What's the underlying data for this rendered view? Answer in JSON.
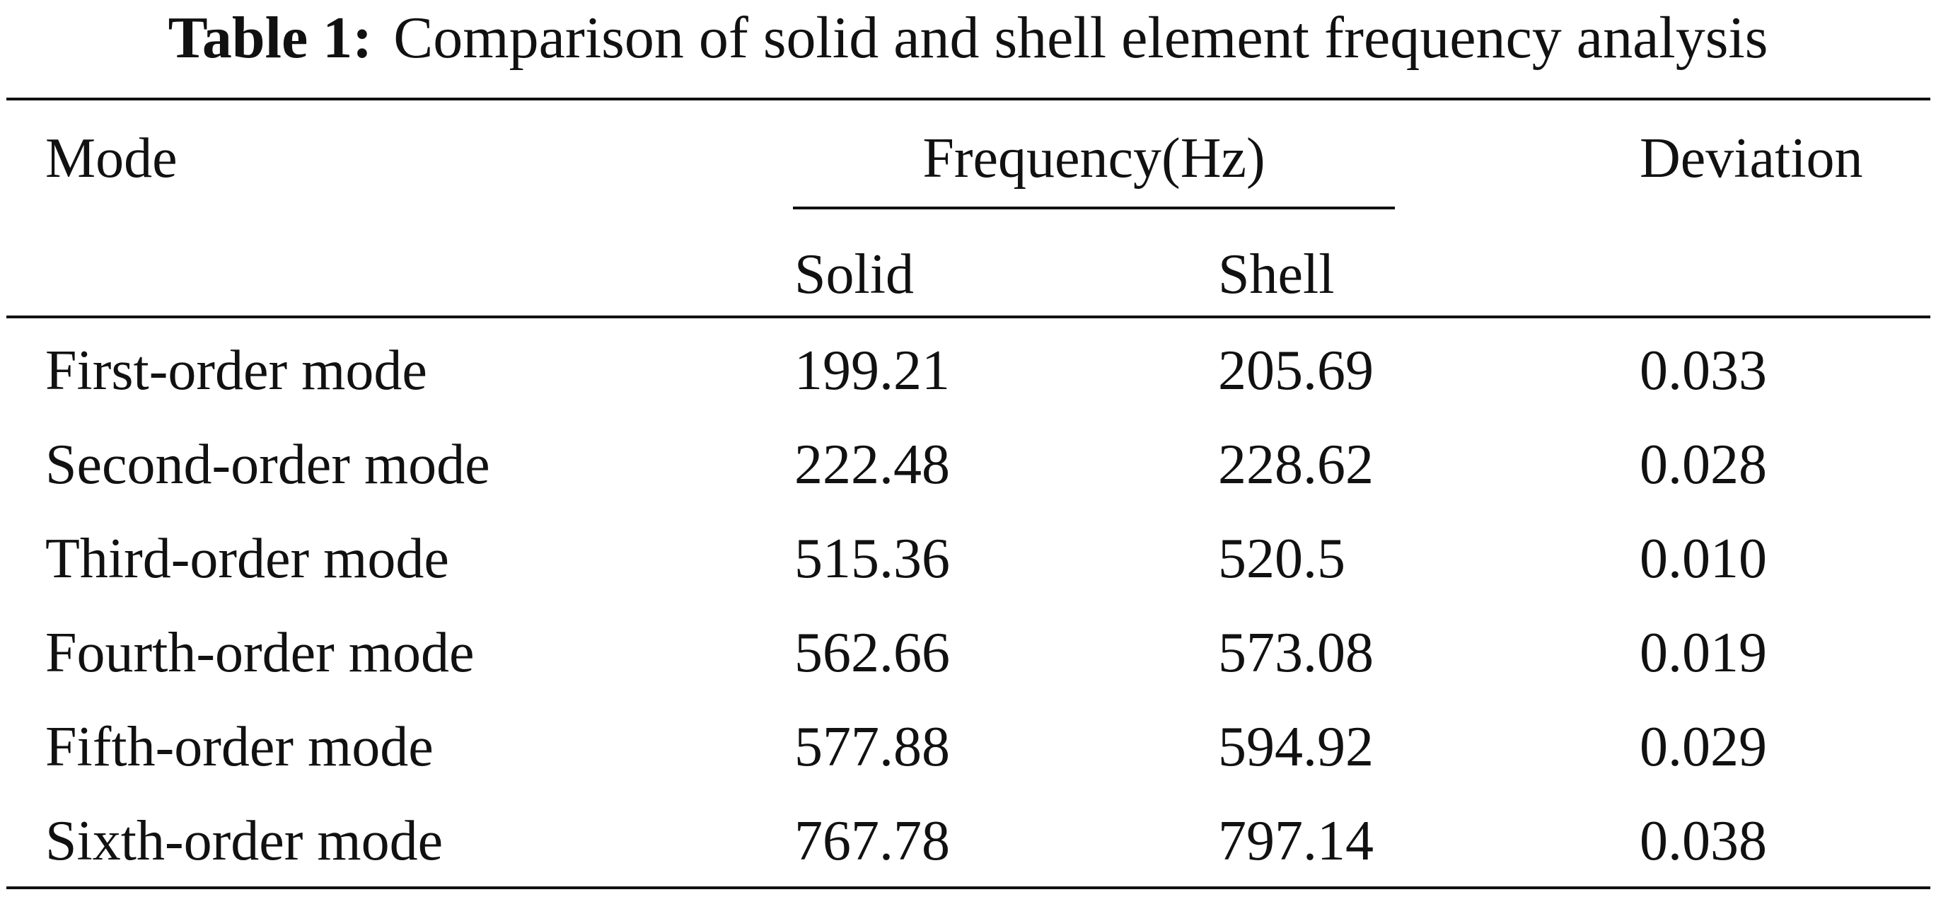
{
  "caption": {
    "label": "Table 1:",
    "text": "Comparison of solid and shell element frequency analysis"
  },
  "header": {
    "mode": "Mode",
    "frequency": "Frequency(Hz)",
    "deviation": "Deviation",
    "solid": "Solid",
    "shell": "Shell"
  },
  "rows": [
    {
      "mode": "First-order mode",
      "solid": "199.21",
      "shell": "205.69",
      "deviation": "0.033"
    },
    {
      "mode": "Second-order mode",
      "solid": "222.48",
      "shell": "228.62",
      "deviation": "0.028"
    },
    {
      "mode": "Third-order mode",
      "solid": "515.36",
      "shell": "520.5",
      "deviation": "0.010"
    },
    {
      "mode": "Fourth-order mode",
      "solid": "562.66",
      "shell": "573.08",
      "deviation": "0.019"
    },
    {
      "mode": "Fifth-order mode",
      "solid": "577.88",
      "shell": "594.92",
      "deviation": "0.029"
    },
    {
      "mode": "Sixth-order mode",
      "solid": "767.78",
      "shell": "797.14",
      "deviation": "0.038"
    }
  ]
}
